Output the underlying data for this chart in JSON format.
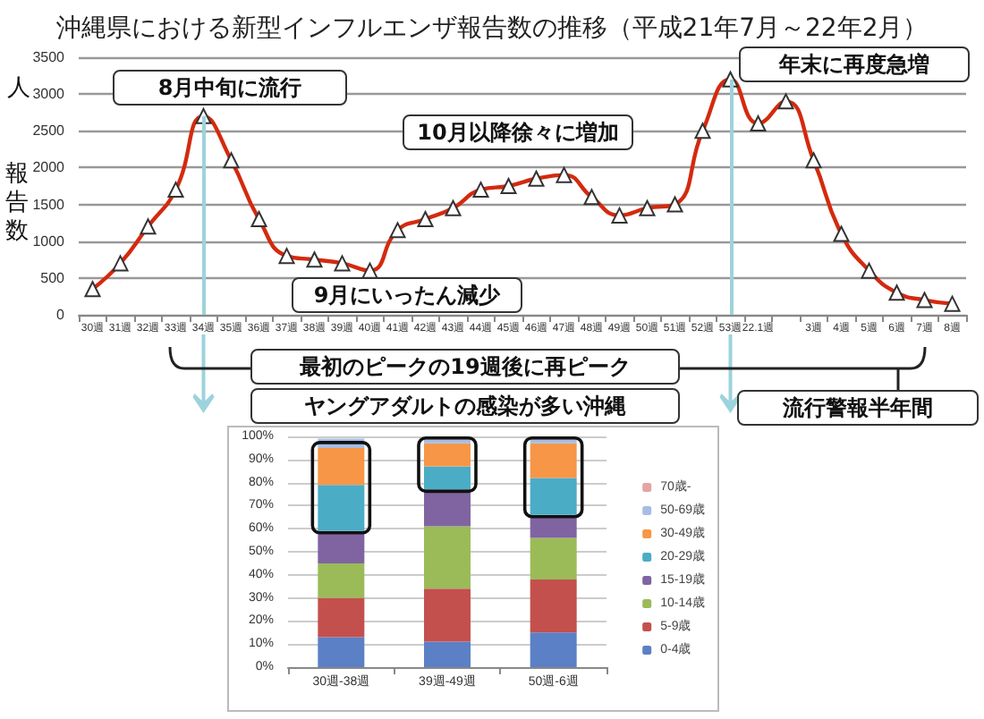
{
  "chart_data": [
    {
      "type": "line",
      "title": "沖縄県における新型インフルエンザ報告数の推移（平成21年7月～22年2月）",
      "ylabel": "報告数",
      "categories": [
        "30週",
        "31週",
        "32週",
        "33週",
        "34週",
        "35週",
        "36週",
        "37週",
        "38週",
        "39週",
        "40週",
        "41週",
        "42週",
        "43週",
        "44週",
        "45週",
        "46週",
        "47週",
        "48週",
        "49週",
        "50週",
        "51週",
        "52週",
        "53週",
        "22.1週",
        null,
        "3週",
        "4週",
        "5週",
        "6週",
        "7週",
        "8週"
      ],
      "series": [
        {
          "color": "#d42a0e",
          "values": [
            350,
            700,
            1200,
            1700,
            2700,
            2100,
            1300,
            800,
            750,
            700,
            600,
            1150,
            1300,
            1450,
            1700,
            1750,
            1850,
            1900,
            1600,
            1350,
            1450,
            1500,
            2500,
            3200,
            2600,
            2900,
            2100,
            1100,
            600,
            300,
            200,
            150
          ]
        }
      ],
      "ref_lines": [
        {
          "axis": "x",
          "value": "34週",
          "color": "#9cd3dc"
        },
        {
          "axis": "x",
          "value": "53週",
          "color": "#9cd3dc"
        }
      ],
      "ylim": [
        0,
        3500
      ],
      "yticks": [
        0,
        500,
        1000,
        1500,
        2000,
        2500,
        3000,
        3500
      ],
      "grid": "y",
      "legend": false,
      "marker": "triangle",
      "line_style": "solid",
      "annotations": [
        "人",
        "8月中旬に流行",
        "10月以降徐々に増加",
        "9月にいったん減少",
        "年末に再度急増",
        "最初のピークの19週後に再ピーク",
        "ヤングアダルトの感染が多い沖縄",
        "流行警報半年間"
      ]
    },
    {
      "type": "bar",
      "stacked": true,
      "categories": [
        "30週-38週",
        "39週-49週",
        "50週-6週"
      ],
      "series": [
        {
          "name": "0-4歳",
          "color": "#5b80c6",
          "values": [
            13,
            11,
            15
          ]
        },
        {
          "name": "5-9歳",
          "color": "#c4504e",
          "values": [
            17,
            23,
            23
          ]
        },
        {
          "name": "10-14歳",
          "color": "#9bbb59",
          "values": [
            15,
            27,
            18
          ]
        },
        {
          "name": "15-19歳",
          "color": "#8064a2",
          "values": [
            14,
            16,
            10
          ]
        },
        {
          "name": "20-29歳",
          "color": "#4bacc6",
          "values": [
            20,
            10,
            16
          ]
        },
        {
          "name": "30-49歳",
          "color": "#f79646",
          "values": [
            16,
            10,
            15
          ]
        },
        {
          "name": "50-69歳",
          "color": "#a7bde3",
          "values": [
            4,
            2,
            2
          ]
        },
        {
          "name": "70歳-",
          "color": "#e6a3a3",
          "values": [
            null,
            null,
            null
          ]
        }
      ],
      "ylim": [
        0,
        100
      ],
      "yticks": [
        {
          "value": 0,
          "label": "0%"
        },
        {
          "value": 10,
          "label": "10%"
        },
        {
          "value": 20,
          "label": "20%"
        },
        {
          "value": 30,
          "label": "30%"
        },
        {
          "value": 40,
          "label": "40%"
        },
        {
          "value": 50,
          "label": "50%"
        },
        {
          "value": 60,
          "label": "60%"
        },
        {
          "value": 70,
          "label": "70%"
        },
        {
          "value": 80,
          "label": "80%"
        },
        {
          "value": 90,
          "label": "90%"
        },
        {
          "value": 100,
          "label": "100%"
        }
      ],
      "grid": "y",
      "legend": "right"
    }
  ]
}
